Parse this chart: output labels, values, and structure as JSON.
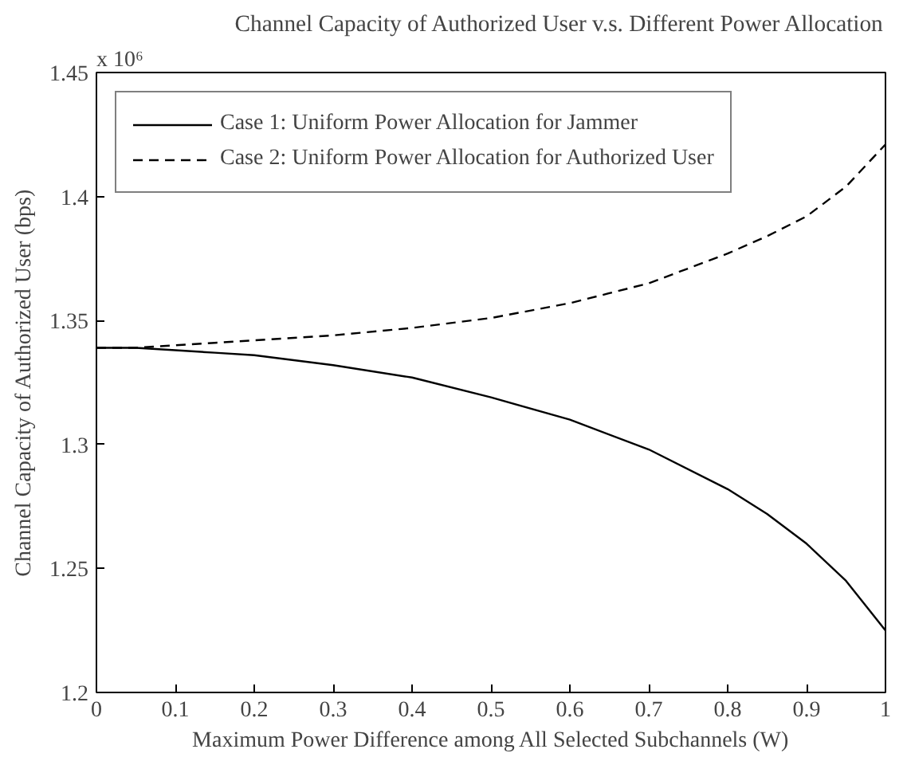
{
  "chart_data": {
    "type": "line",
    "title": "Channel Capacity of Authorized User v.s. Different Power Allocation",
    "xlabel": "Maximum Power Difference among All Selected Subchannels (W)",
    "ylabel": "Channel Capacity of Authorized User (bps)",
    "annotations": [
      "x 10⁶"
    ],
    "x": [
      0,
      0.05,
      0.1,
      0.15,
      0.2,
      0.3,
      0.4,
      0.5,
      0.6,
      0.7,
      0.8,
      0.85,
      0.9,
      0.95,
      1.0
    ],
    "series": [
      {
        "name": "Case 1: Uniform Power Allocation for Jammer",
        "color": "#000000",
        "line_style": "solid",
        "values": [
          1.339,
          1.339,
          1.338,
          1.337,
          1.336,
          1.332,
          1.327,
          1.319,
          1.31,
          1.298,
          1.282,
          1.272,
          1.26,
          1.245,
          1.225
        ]
      },
      {
        "name": "Case 2: Uniform Power Allocation for Authorized User",
        "color": "#000000",
        "line_style": "dashed",
        "values": [
          1.339,
          1.339,
          1.34,
          1.341,
          1.342,
          1.344,
          1.347,
          1.351,
          1.357,
          1.365,
          1.377,
          1.384,
          1.392,
          1.404,
          1.421
        ]
      }
    ],
    "xlim": [
      0,
      1
    ],
    "xticks": [
      0,
      0.1,
      0.2,
      0.3,
      0.4,
      0.5,
      0.6,
      0.7,
      0.8,
      0.9,
      1
    ],
    "ylim": [
      1.2,
      1.45
    ],
    "yticks": [
      1.2,
      1.25,
      1.3,
      1.35,
      1.4,
      1.45
    ],
    "legend": "top left",
    "grid": false,
    "marker": "none"
  }
}
